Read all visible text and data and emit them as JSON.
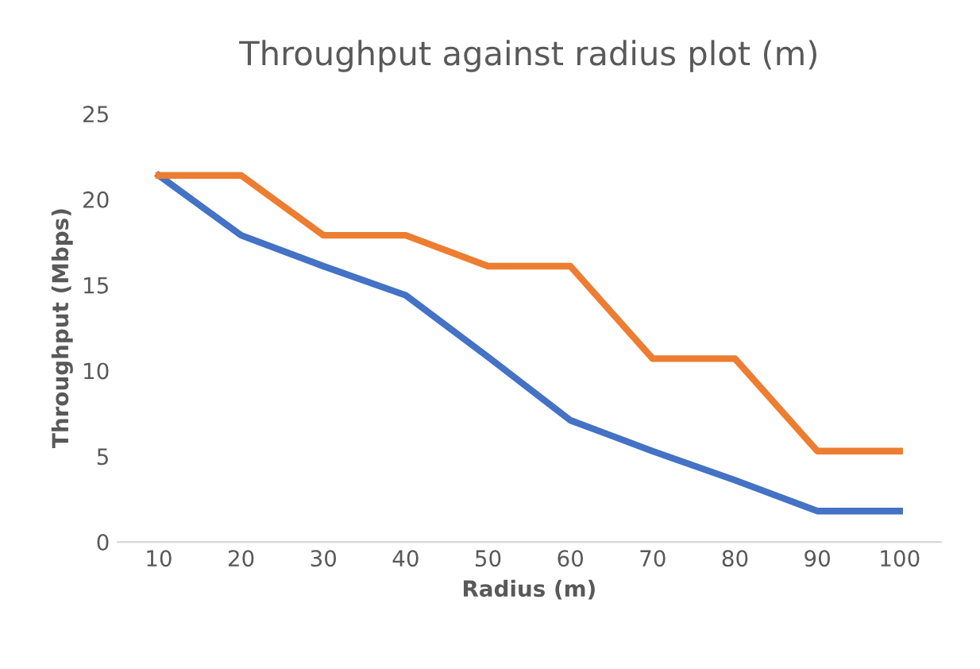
{
  "chart_data": {
    "type": "line",
    "title": "Throughput against radius plot (m)",
    "xlabel": "Radius (m)",
    "ylabel": "Throughput (Mbps)",
    "categories": [
      "10",
      "20",
      "30",
      "40",
      "50",
      "60",
      "70",
      "80",
      "90",
      "100"
    ],
    "series": [
      {
        "color": "#4472c4",
        "values": [
          21.4,
          17.9,
          16.1,
          14.4,
          10.8,
          7.1,
          5.3,
          3.6,
          1.8,
          1.8
        ]
      },
      {
        "color": "#ed7d31",
        "values": [
          21.4,
          21.4,
          17.9,
          17.9,
          16.1,
          16.1,
          10.7,
          10.7,
          5.3,
          5.3
        ]
      }
    ],
    "ylim": [
      0,
      25
    ],
    "yticks": [
      0,
      5,
      10,
      15,
      20,
      25
    ],
    "grid": false,
    "legend": false,
    "marker": "none",
    "line_style": "solid"
  }
}
